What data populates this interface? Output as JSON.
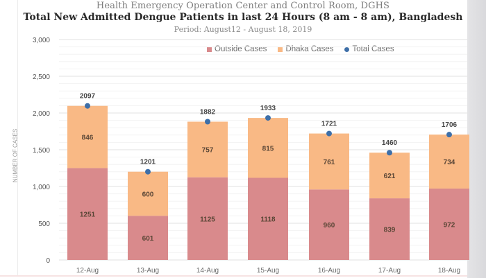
{
  "header": {
    "organization": "Health Emergency Operation Center and Control Room, DGHS",
    "title": "Total New Admitted Dengue Patients in last 24 Hours (8 am - 8 am), Bangladesh",
    "period": "Period: August12 - August 18, 2019"
  },
  "colors": {
    "outside": "#d98a8c",
    "dhaka": "#f9b985",
    "total": "#3e6fa8"
  },
  "chart_data": {
    "type": "bar",
    "stacked": true,
    "title": "Total New Admitted Dengue Patients in last 24 Hours (8 am - 8 am), Bangladesh",
    "subtitle": "Period: August12 - August 18, 2019",
    "xlabel": "",
    "ylabel": "NUMBER OF CASES",
    "ylim": [
      0,
      3000
    ],
    "yticks": [
      0,
      500,
      1000,
      1500,
      2000,
      2500,
      3000
    ],
    "ytick_labels": [
      "0",
      "500",
      "1,000",
      "1,500",
      "2,000",
      "2,500",
      "3,000"
    ],
    "grid": true,
    "minor_grid_step": 100,
    "legend_position": "top-right",
    "categories": [
      "12-Aug",
      "13-Aug",
      "14-Aug",
      "15-Aug",
      "16-Aug",
      "17-Aug",
      "18-Aug"
    ],
    "series": [
      {
        "name": "Outside Cases",
        "type": "bar",
        "values": [
          1251,
          601,
          1125,
          1118,
          960,
          839,
          972
        ]
      },
      {
        "name": "Dhaka Cases",
        "type": "bar",
        "values": [
          846,
          600,
          757,
          815,
          761,
          621,
          734
        ]
      },
      {
        "name": "Total Cases",
        "type": "scatter",
        "values": [
          2097,
          1201,
          1882,
          1933,
          1721,
          1460,
          1706
        ]
      }
    ]
  },
  "legend": {
    "items": [
      {
        "label": "Outside Cases",
        "key": "outside"
      },
      {
        "label": "Dhaka Cases",
        "key": "dhaka"
      },
      {
        "label": "Total Cases",
        "key": "total"
      }
    ]
  }
}
